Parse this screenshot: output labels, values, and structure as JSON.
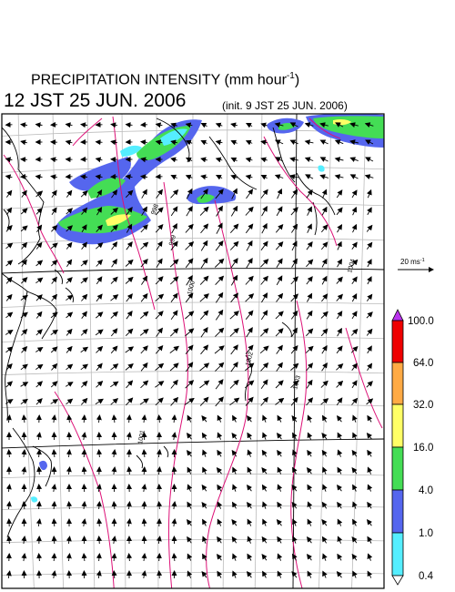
{
  "header": {
    "title_main": "PRECIPITATION INTENSITY (mm hour",
    "title_exp": "-1",
    "title_end": ")",
    "valid_time": "12 JST 25 JUN. 2006",
    "init_time": "(init. 9 JST 25 JUN. 2006)"
  },
  "wind_legend": {
    "label": "20 ms",
    "exp": "-1"
  },
  "colorbar": {
    "levels": [
      "0.4",
      "1.0",
      "4.0",
      "16.0",
      "32.0",
      "64.0",
      "100.0"
    ],
    "colors": [
      "#ffffff",
      "#55eeff",
      "#5566ee",
      "#44dd55",
      "#ffff66",
      "#ffaa44",
      "#ee0000",
      "#bb33ee"
    ]
  },
  "isobar_labels": [
    "998",
    "999",
    "1000",
    "1001",
    "1002",
    "1003",
    "1004"
  ],
  "colors": {
    "isobar": "#dd1177",
    "grid": "#bbbbbb",
    "coast": "#000000"
  }
}
